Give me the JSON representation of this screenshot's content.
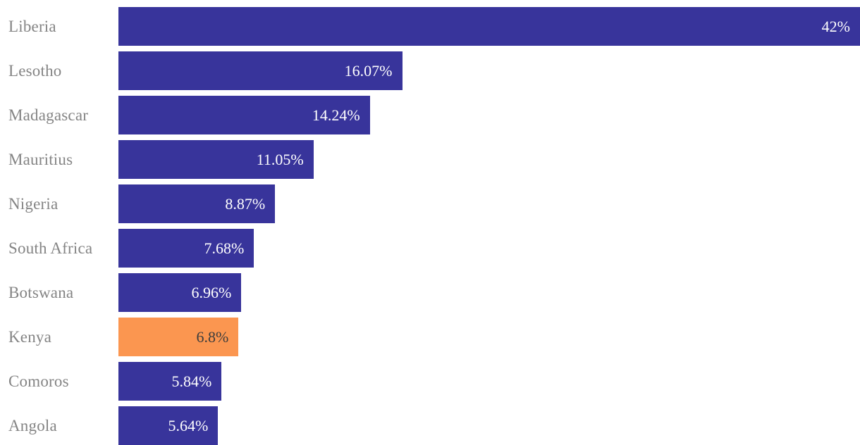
{
  "chart_data": {
    "type": "bar",
    "orientation": "horizontal",
    "title": "",
    "xlabel": "",
    "ylabel": "",
    "xlim": [
      0,
      42
    ],
    "grid": false,
    "legend": false,
    "categories": [
      "Liberia",
      "Lesotho",
      "Madagascar",
      "Mauritius",
      "Nigeria",
      "South Africa",
      "Botswana",
      "Kenya",
      "Comoros",
      "Angola"
    ],
    "values": [
      42,
      16.07,
      14.24,
      11.05,
      8.87,
      7.68,
      6.96,
      6.8,
      5.84,
      5.64
    ],
    "value_labels": [
      "42%",
      "16.07%",
      "14.24%",
      "11.05%",
      "8.87%",
      "7.68%",
      "6.96%",
      "6.8%",
      "5.84%",
      "5.64%"
    ],
    "highlighted_category": "Kenya",
    "colors": {
      "bar": "#38349B",
      "highlight_bar": "#FB9650",
      "category_label_text": "#848484",
      "value_text": "#FFFFFF",
      "highlight_value_text": "#3D3D3D",
      "background": "#FFFFFF"
    }
  }
}
